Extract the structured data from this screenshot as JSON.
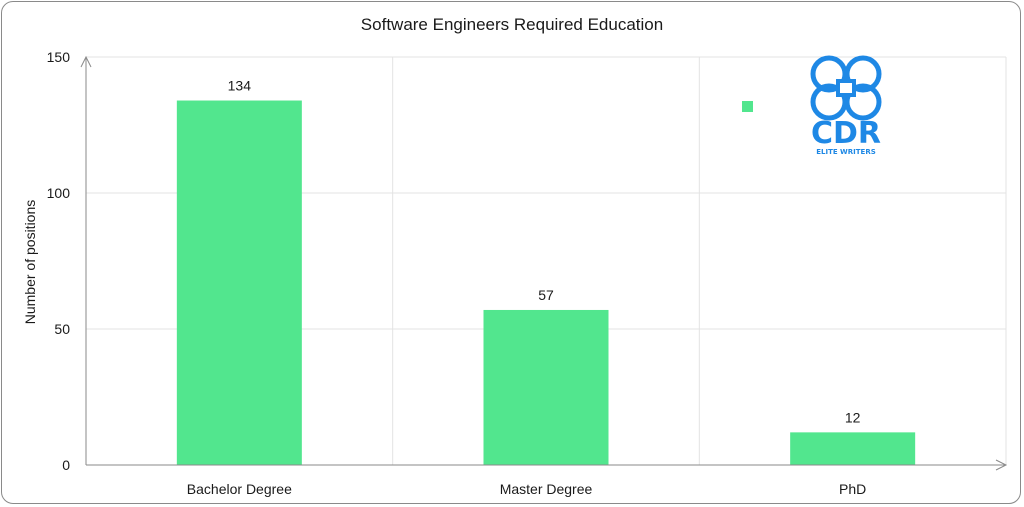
{
  "chart_data": {
    "type": "bar",
    "title": "Software Engineers Required Education",
    "xlabel": "",
    "ylabel": "Number of positions",
    "categories": [
      "Bachelor Degree",
      "Master Degree",
      "PhD"
    ],
    "values": [
      134,
      57,
      12
    ],
    "data_labels": [
      "134",
      "57",
      "12"
    ],
    "ylim": [
      0,
      150
    ],
    "yticks": [
      0,
      50,
      100,
      150
    ],
    "ytick_labels": [
      "0",
      "50",
      "100",
      "150"
    ],
    "grid": true,
    "legend": "top-right",
    "bar_color": "#52e68e",
    "grid_color": "#e3e3e3",
    "axis_color": "#8a8a8a"
  },
  "logo": {
    "name": "cdr-logo-icon",
    "text": "CDR",
    "subtext": "ELITE WRITERS",
    "color": "#1e88e5"
  }
}
